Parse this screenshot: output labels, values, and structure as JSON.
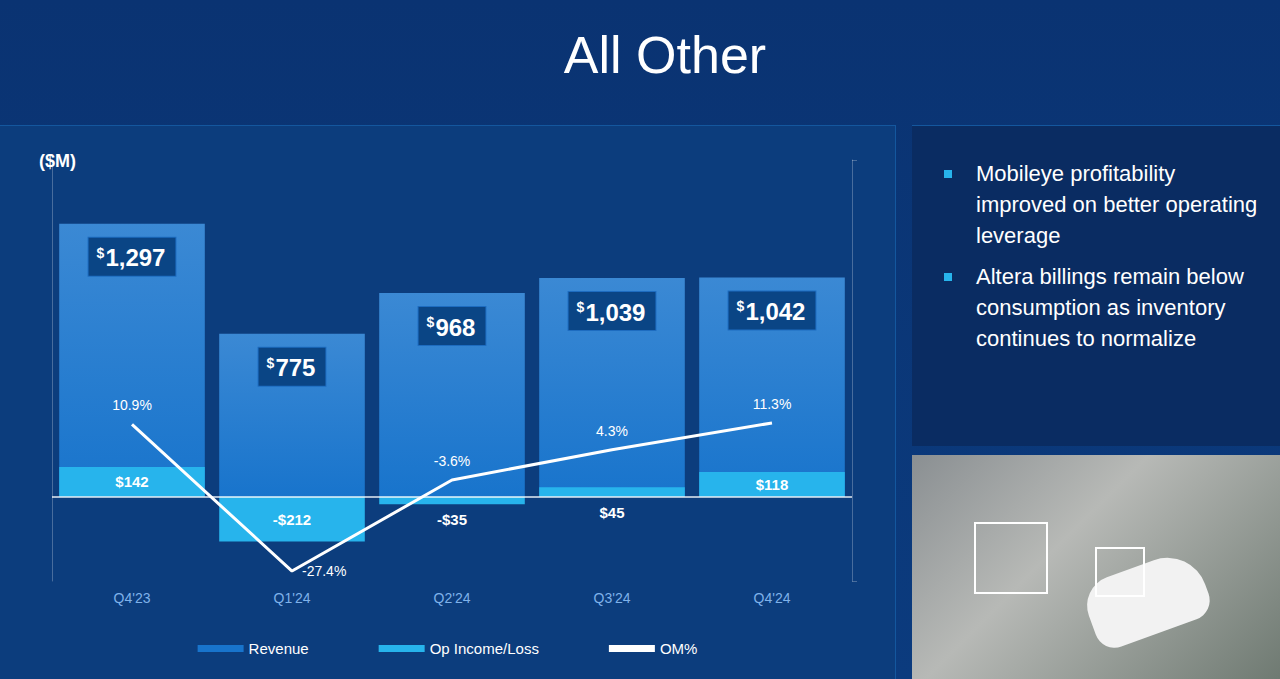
{
  "chart_data": {
    "type": "bar",
    "title": "All Other",
    "ylabel": "($M)",
    "categories": [
      "Q4'23",
      "Q1'24",
      "Q2'24",
      "Q3'24",
      "Q4'24"
    ],
    "series": [
      {
        "name": "Revenue",
        "type": "bar",
        "color": "#1874cc",
        "values": [
          1297,
          775,
          968,
          1039,
          1042
        ],
        "value_labels": [
          "$1,297",
          "$775",
          "$968",
          "$1,039",
          "$1,042"
        ]
      },
      {
        "name": "Op Income/Loss",
        "type": "bar",
        "color": "#27b4ec",
        "values": [
          142,
          -212,
          -35,
          45,
          118
        ],
        "value_labels": [
          "$142",
          "-$212",
          "-$35",
          "$45",
          "$118"
        ]
      },
      {
        "name": "OM%",
        "type": "line",
        "axis": "y2",
        "color": "#ffffff",
        "values": [
          10.9,
          -27.4,
          -3.6,
          4.3,
          11.3
        ],
        "value_labels": [
          "10.9%",
          "-27.4%",
          "-3.6%",
          "4.3%",
          "11.3%"
        ]
      }
    ],
    "ylim": [
      -400,
      1600
    ],
    "yticks": [
      0
    ],
    "y2lim": [
      -30,
      80
    ],
    "y2ticks": [
      -30,
      80
    ],
    "grid": true,
    "legend": "bottom",
    "data_labels": true,
    "tick_labels": "x",
    "annotations": [
      "Mobileye profitability improved on better operating leverage",
      "Altera billings remain below consumption as inventory continues to normalize"
    ]
  }
}
